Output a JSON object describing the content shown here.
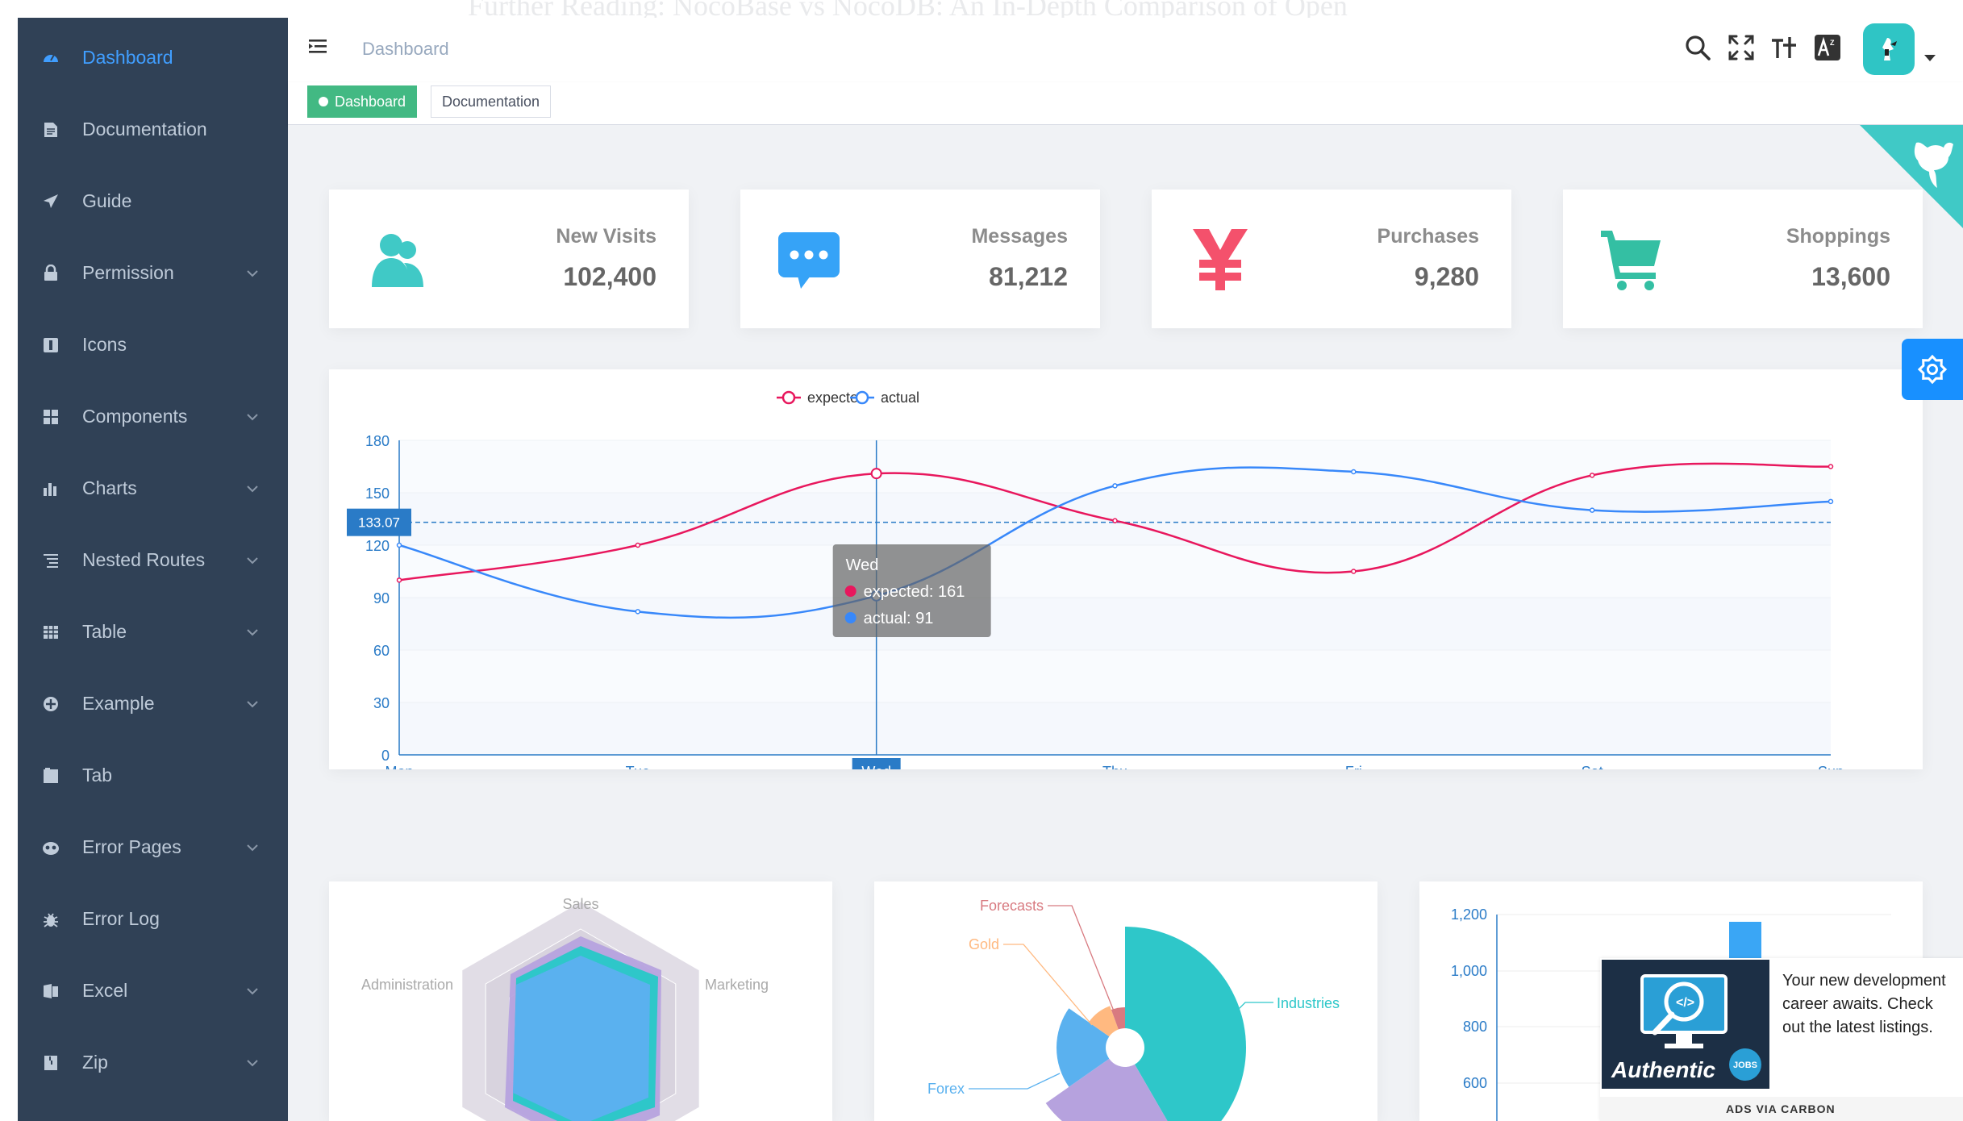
{
  "ghost_heading": "Further Reading: NocoBase vs NocoDB: An In-Depth Comparison of Open",
  "sidebar": {
    "items": [
      {
        "label": "Dashboard",
        "icon": "dashboard-icon",
        "expandable": false,
        "active": true
      },
      {
        "label": "Documentation",
        "icon": "documentation-icon",
        "expandable": false
      },
      {
        "label": "Guide",
        "icon": "guide-icon",
        "expandable": false
      },
      {
        "label": "Permission",
        "icon": "lock-icon",
        "expandable": true
      },
      {
        "label": "Icons",
        "icon": "icon-icon",
        "expandable": false
      },
      {
        "label": "Components",
        "icon": "components-icon",
        "expandable": true
      },
      {
        "label": "Charts",
        "icon": "chart-icon",
        "expandable": true
      },
      {
        "label": "Nested Routes",
        "icon": "nested-icon",
        "expandable": true
      },
      {
        "label": "Table",
        "icon": "table-icon",
        "expandable": true
      },
      {
        "label": "Example",
        "icon": "example-icon",
        "expandable": true
      },
      {
        "label": "Tab",
        "icon": "tab-icon",
        "expandable": false
      },
      {
        "label": "Error Pages",
        "icon": "error-pages-icon",
        "expandable": true
      },
      {
        "label": "Error Log",
        "icon": "bug-icon",
        "expandable": false
      },
      {
        "label": "Excel",
        "icon": "excel-icon",
        "expandable": true
      },
      {
        "label": "Zip",
        "icon": "zip-icon",
        "expandable": true
      }
    ]
  },
  "header": {
    "breadcrumb": "Dashboard",
    "icons": [
      "search-icon",
      "fullscreen-icon",
      "font-size-icon",
      "language-icon"
    ]
  },
  "tags": [
    {
      "label": "Dashboard",
      "active": true
    },
    {
      "label": "Documentation",
      "active": false
    }
  ],
  "panels": [
    {
      "title": "New Visits",
      "value": "102,400",
      "icon": "people-icon",
      "color": "#40c9c6"
    },
    {
      "title": "Messages",
      "value": "81,212",
      "icon": "message-icon",
      "color": "#36a3f7"
    },
    {
      "title": "Purchases",
      "value": "9,280",
      "icon": "money-icon",
      "color": "#f4516c"
    },
    {
      "title": "Shoppings",
      "value": "13,600",
      "icon": "shopping-icon",
      "color": "#34bfa3"
    }
  ],
  "chart_data": [
    {
      "type": "line",
      "categories": [
        "Mon",
        "Tue",
        "Wed",
        "Thu",
        "Fri",
        "Sat",
        "Sun"
      ],
      "series": [
        {
          "name": "expected",
          "values": [
            100,
            120,
            161,
            134,
            105,
            160,
            165
          ],
          "color": "#e8175d"
        },
        {
          "name": "actual",
          "values": [
            120,
            82,
            91,
            154,
            162,
            140,
            145
          ],
          "color": "#3888fa"
        }
      ],
      "ylim": [
        0,
        180
      ],
      "yticks": [
        0,
        30,
        60,
        90,
        120,
        150,
        180
      ],
      "legend": "top-center",
      "grid": true,
      "crosshair": {
        "category": "Wed",
        "y_value": "133.07"
      },
      "tooltip": {
        "title": "Wed",
        "lines": [
          "expected: 161",
          "actual: 91"
        ]
      }
    },
    {
      "type": "radar",
      "indicators": [
        "Sales",
        "Administration",
        "Marketing"
      ]
    },
    {
      "type": "pie",
      "labels": [
        "Industries",
        "Forecasts",
        "Gold",
        "Forex"
      ]
    },
    {
      "type": "bar",
      "yticks": [
        "600",
        "800",
        "1,000",
        "1,200"
      ]
    }
  ],
  "ad": {
    "text": "Your new development career awaits. Check out the latest listings.",
    "via": "ADS VIA CARBON",
    "brand": "Authentic",
    "badge": "JOBS"
  }
}
